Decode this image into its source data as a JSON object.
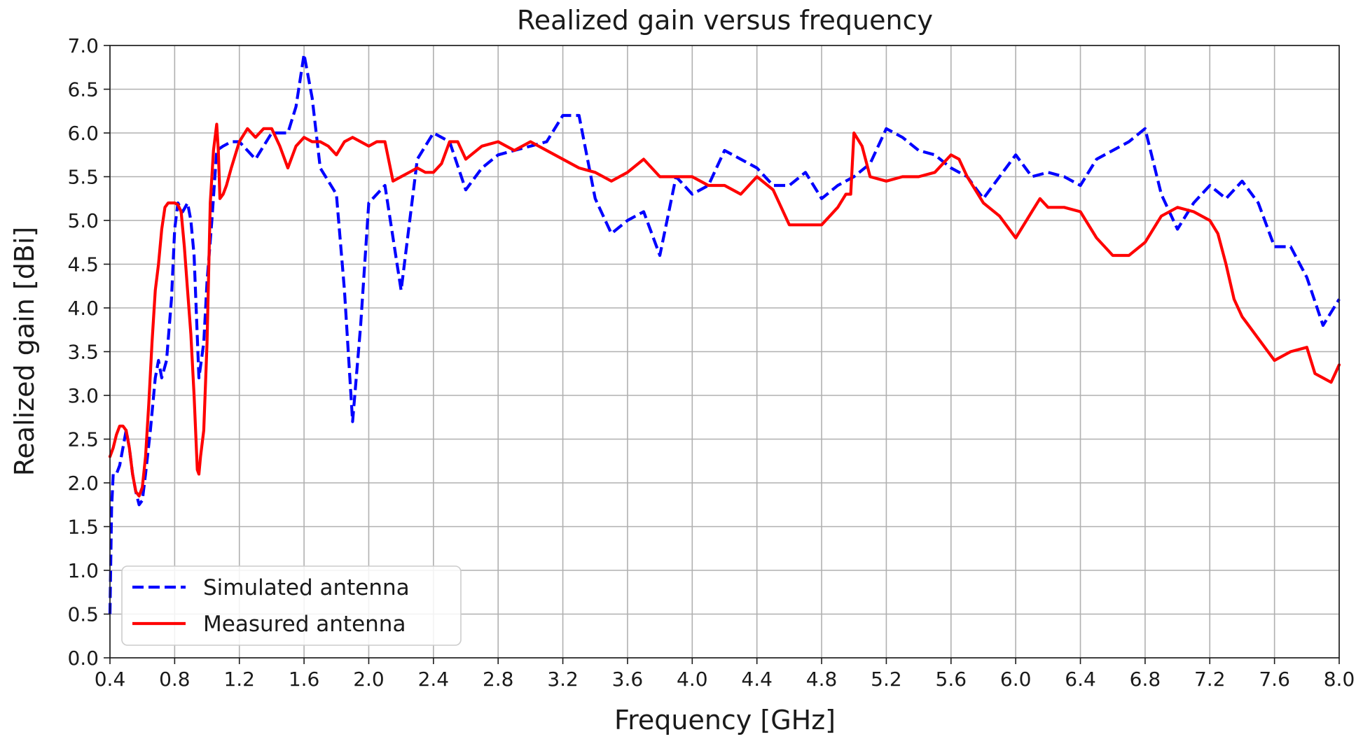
{
  "chart_data": {
    "type": "line",
    "title": "Realized gain versus frequency",
    "xlabel": "Frequency [GHz]",
    "ylabel": "Realized gain [dBi]",
    "xlim": [
      0.4,
      8.0
    ],
    "ylim": [
      0.0,
      7.0
    ],
    "xticks": [
      "0.4",
      "0.8",
      "1.2",
      "1.6",
      "2.0",
      "2.4",
      "2.8",
      "3.2",
      "3.6",
      "4.0",
      "4.4",
      "4.8",
      "5.2",
      "5.6",
      "6.0",
      "6.4",
      "6.8",
      "7.2",
      "7.6",
      "8.0"
    ],
    "yticks": [
      "0.0",
      "0.5",
      "1.0",
      "1.5",
      "2.0",
      "2.5",
      "3.0",
      "3.5",
      "4.0",
      "4.5",
      "5.0",
      "5.5",
      "6.0",
      "6.5",
      "7.0"
    ],
    "grid": true,
    "legend_position": "lower-left",
    "series": [
      {
        "name": "Simulated antenna",
        "color": "#0000ff",
        "style": "dashed",
        "x": [
          0.4,
          0.41,
          0.42,
          0.44,
          0.46,
          0.48,
          0.5,
          0.52,
          0.54,
          0.56,
          0.58,
          0.6,
          0.62,
          0.65,
          0.68,
          0.7,
          0.72,
          0.75,
          0.78,
          0.8,
          0.82,
          0.85,
          0.88,
          0.9,
          0.92,
          0.95,
          0.98,
          1.0,
          1.03,
          1.06,
          1.1,
          1.15,
          1.2,
          1.3,
          1.4,
          1.5,
          1.55,
          1.6,
          1.65,
          1.7,
          1.8,
          1.85,
          1.9,
          1.95,
          2.0,
          2.1,
          2.2,
          2.3,
          2.4,
          2.5,
          2.6,
          2.7,
          2.8,
          2.9,
          3.0,
          3.1,
          3.2,
          3.3,
          3.4,
          3.5,
          3.6,
          3.7,
          3.8,
          3.9,
          4.0,
          4.1,
          4.2,
          4.3,
          4.4,
          4.5,
          4.6,
          4.7,
          4.8,
          4.9,
          5.0,
          5.1,
          5.2,
          5.3,
          5.4,
          5.5,
          5.6,
          5.7,
          5.8,
          5.9,
          6.0,
          6.1,
          6.2,
          6.3,
          6.4,
          6.5,
          6.6,
          6.7,
          6.8,
          6.9,
          7.0,
          7.1,
          7.2,
          7.3,
          7.4,
          7.5,
          7.6,
          7.7,
          7.8,
          7.9,
          8.0
        ],
        "y": [
          0.5,
          1.7,
          2.1,
          2.1,
          2.2,
          2.4,
          2.6,
          2.4,
          2.1,
          1.9,
          1.75,
          1.8,
          2.1,
          2.6,
          3.2,
          3.4,
          3.2,
          3.4,
          4.1,
          4.9,
          5.2,
          5.1,
          5.2,
          5.0,
          4.6,
          3.2,
          3.6,
          4.3,
          5.0,
          5.8,
          5.85,
          5.9,
          5.9,
          5.7,
          6.0,
          6.0,
          6.3,
          6.9,
          6.4,
          5.6,
          5.3,
          4.2,
          2.7,
          3.8,
          5.2,
          5.4,
          4.2,
          5.7,
          6.0,
          5.9,
          5.35,
          5.6,
          5.75,
          5.8,
          5.85,
          5.9,
          6.2,
          6.2,
          5.25,
          4.85,
          5.0,
          5.1,
          4.6,
          5.5,
          5.3,
          5.4,
          5.8,
          5.7,
          5.6,
          5.4,
          5.4,
          5.55,
          5.25,
          5.4,
          5.5,
          5.65,
          6.05,
          5.95,
          5.8,
          5.75,
          5.6,
          5.5,
          5.25,
          5.5,
          5.75,
          5.5,
          5.55,
          5.5,
          5.4,
          5.7,
          5.8,
          5.9,
          6.05,
          5.3,
          4.9,
          5.2,
          5.4,
          5.25,
          5.45,
          5.2,
          4.7,
          4.7,
          4.35,
          3.8,
          4.1
        ]
      },
      {
        "name": "Measured antenna",
        "color": "#ff0000",
        "style": "solid",
        "x": [
          0.4,
          0.42,
          0.44,
          0.46,
          0.48,
          0.5,
          0.52,
          0.54,
          0.56,
          0.58,
          0.6,
          0.62,
          0.64,
          0.66,
          0.68,
          0.7,
          0.72,
          0.74,
          0.76,
          0.78,
          0.8,
          0.82,
          0.84,
          0.86,
          0.88,
          0.9,
          0.92,
          0.94,
          0.95,
          0.96,
          0.98,
          1.0,
          1.02,
          1.04,
          1.06,
          1.07,
          1.08,
          1.1,
          1.12,
          1.15,
          1.2,
          1.25,
          1.3,
          1.35,
          1.4,
          1.45,
          1.5,
          1.55,
          1.6,
          1.65,
          1.7,
          1.75,
          1.8,
          1.85,
          1.9,
          1.95,
          2.0,
          2.05,
          2.1,
          2.15,
          2.2,
          2.25,
          2.3,
          2.35,
          2.4,
          2.45,
          2.5,
          2.55,
          2.6,
          2.7,
          2.8,
          2.9,
          3.0,
          3.1,
          3.2,
          3.3,
          3.4,
          3.5,
          3.6,
          3.7,
          3.8,
          3.9,
          4.0,
          4.1,
          4.2,
          4.3,
          4.4,
          4.5,
          4.6,
          4.7,
          4.8,
          4.9,
          4.95,
          4.98,
          5.0,
          5.05,
          5.1,
          5.2,
          5.3,
          5.4,
          5.5,
          5.6,
          5.65,
          5.7,
          5.8,
          5.9,
          6.0,
          6.1,
          6.15,
          6.2,
          6.3,
          6.4,
          6.5,
          6.6,
          6.7,
          6.8,
          6.9,
          7.0,
          7.1,
          7.2,
          7.25,
          7.3,
          7.35,
          7.4,
          7.5,
          7.6,
          7.7,
          7.8,
          7.85,
          7.9,
          7.95,
          8.0
        ],
        "y": [
          2.3,
          2.4,
          2.55,
          2.65,
          2.65,
          2.6,
          2.4,
          2.1,
          1.9,
          1.85,
          1.95,
          2.3,
          2.9,
          3.6,
          4.2,
          4.5,
          4.9,
          5.15,
          5.2,
          5.2,
          5.2,
          5.18,
          5.1,
          4.7,
          4.2,
          3.7,
          3.0,
          2.15,
          2.1,
          2.3,
          2.6,
          3.6,
          5.2,
          5.8,
          6.1,
          5.8,
          5.25,
          5.3,
          5.4,
          5.6,
          5.9,
          6.05,
          5.95,
          6.05,
          6.05,
          5.85,
          5.6,
          5.85,
          5.95,
          5.9,
          5.9,
          5.85,
          5.75,
          5.9,
          5.95,
          5.9,
          5.85,
          5.9,
          5.9,
          5.45,
          5.5,
          5.55,
          5.6,
          5.55,
          5.55,
          5.65,
          5.9,
          5.9,
          5.7,
          5.85,
          5.9,
          5.8,
          5.9,
          5.8,
          5.7,
          5.6,
          5.55,
          5.45,
          5.55,
          5.7,
          5.5,
          5.5,
          5.5,
          5.4,
          5.4,
          5.3,
          5.5,
          5.35,
          4.95,
          4.95,
          4.95,
          5.15,
          5.3,
          5.3,
          6.0,
          5.85,
          5.5,
          5.45,
          5.5,
          5.5,
          5.55,
          5.75,
          5.7,
          5.5,
          5.2,
          5.05,
          4.8,
          5.1,
          5.25,
          5.15,
          5.15,
          5.1,
          4.8,
          4.6,
          4.6,
          4.75,
          5.05,
          5.15,
          5.1,
          5.0,
          4.85,
          4.5,
          4.1,
          3.9,
          3.65,
          3.4,
          3.5,
          3.55,
          3.25,
          3.2,
          3.15,
          3.35
        ]
      }
    ]
  }
}
